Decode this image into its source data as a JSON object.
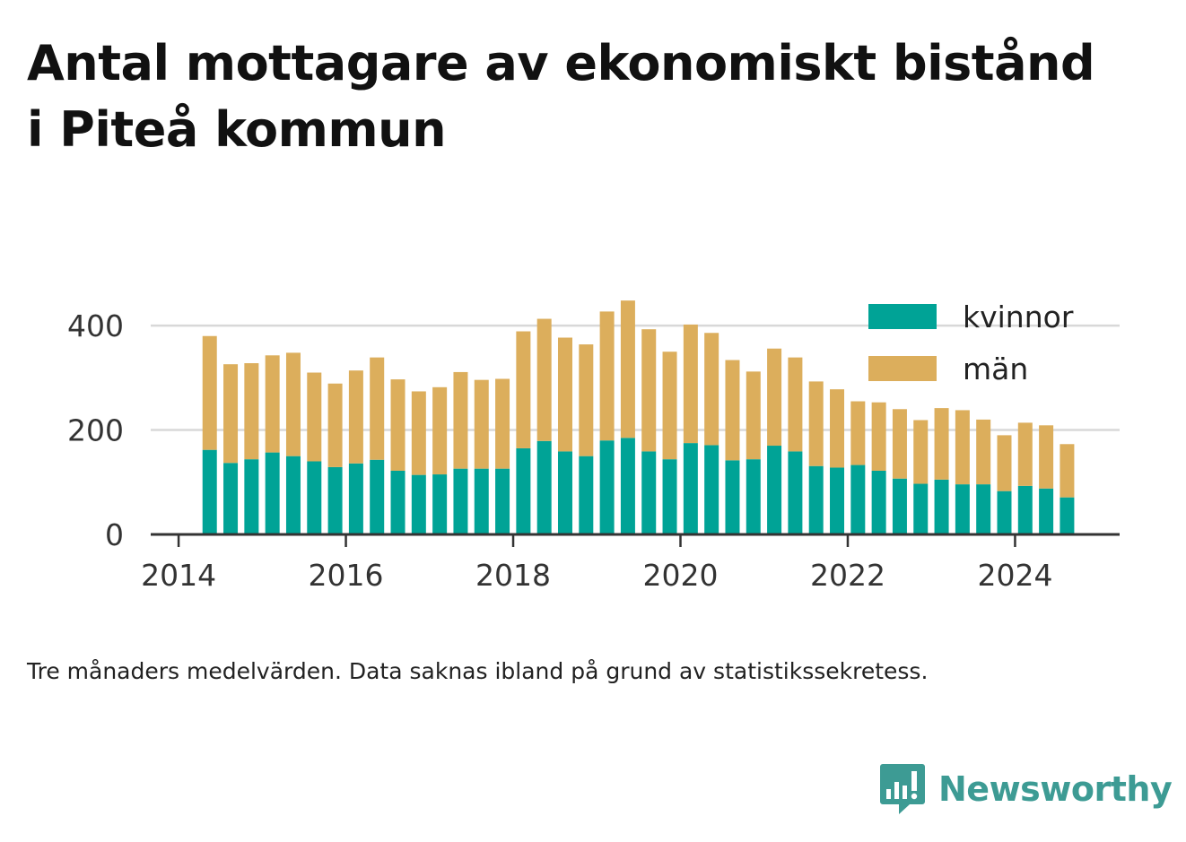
{
  "title": "Antal mottagare av ekonomiskt bistånd i Piteå kommun",
  "caption": "Tre månaders medelvärden. Data saknas ibland på grund av statistikssekretess.",
  "brand": "Newsworthy",
  "colors": {
    "kvinnor": "#00a396",
    "man": "#dcae5c",
    "grid": "#d8d8d8",
    "axis": "#333333",
    "brand": "#3d9b94"
  },
  "chart_data": {
    "type": "bar",
    "stacked": true,
    "x_unit": "date",
    "xlim": [
      "2013-09-01",
      "2025-04-01"
    ],
    "ylim": [
      0,
      450
    ],
    "y_ticks": [
      0,
      200,
      400
    ],
    "x_ticks": [
      "2014",
      "2016",
      "2018",
      "2020",
      "2022",
      "2024"
    ],
    "legend_position": "top-right",
    "grid": "horizontal",
    "x": [
      "2014-05",
      "2014-08",
      "2014-11",
      "2015-02",
      "2015-05",
      "2015-08",
      "2015-11",
      "2016-02",
      "2016-05",
      "2016-08",
      "2016-11",
      "2017-02",
      "2017-05",
      "2017-08",
      "2017-11",
      "2018-02",
      "2018-05",
      "2018-08",
      "2018-11",
      "2019-02",
      "2019-05",
      "2019-08",
      "2019-11",
      "2020-02",
      "2020-05",
      "2020-08",
      "2020-11",
      "2021-02",
      "2021-05",
      "2021-08",
      "2021-11",
      "2022-02",
      "2022-05",
      "2022-08",
      "2022-11",
      "2023-02",
      "2023-05",
      "2023-08",
      "2023-11",
      "2024-02",
      "2024-05",
      "2024-08"
    ],
    "series": [
      {
        "name": "kvinnor",
        "values": [
          162,
          137,
          144,
          157,
          150,
          140,
          129,
          136,
          143,
          122,
          114,
          115,
          126,
          126,
          126,
          165,
          179,
          159,
          150,
          180,
          185,
          159,
          144,
          175,
          171,
          142,
          144,
          170,
          159,
          131,
          128,
          133,
          122,
          107,
          97,
          105,
          96,
          96,
          83,
          93,
          88,
          71
        ]
      },
      {
        "name": "män",
        "values": [
          218,
          189,
          184,
          186,
          198,
          170,
          160,
          178,
          196,
          175,
          160,
          167,
          185,
          170,
          172,
          224,
          234,
          218,
          214,
          247,
          263,
          234,
          206,
          227,
          215,
          192,
          168,
          186,
          180,
          162,
          150,
          122,
          131,
          133,
          122,
          137,
          142,
          124,
          107,
          121,
          121,
          102
        ]
      }
    ]
  }
}
